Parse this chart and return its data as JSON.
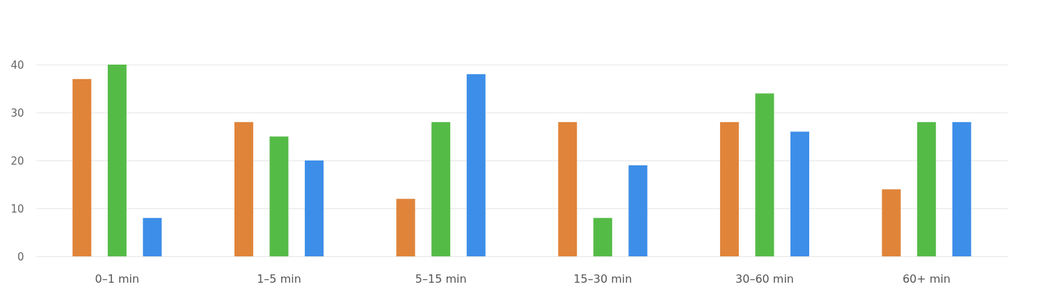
{
  "chart_data": {
    "type": "bar",
    "categories": [
      "0–1 min",
      "1–5 min",
      "5–15 min",
      "15–30 min",
      "30–60 min",
      "60+ min"
    ],
    "series": [
      {
        "color": "#e0843a",
        "values": [
          37,
          28,
          12,
          28,
          28,
          14
        ]
      },
      {
        "color": "#55bb47",
        "values": [
          40,
          25,
          28,
          8,
          34,
          28
        ]
      },
      {
        "color": "#3d8ee8",
        "values": [
          8,
          20,
          38,
          19,
          26,
          28
        ]
      }
    ],
    "ylim": [
      0,
      40
    ],
    "yticks": [
      0,
      10,
      20,
      30,
      40
    ],
    "grid": "y"
  }
}
